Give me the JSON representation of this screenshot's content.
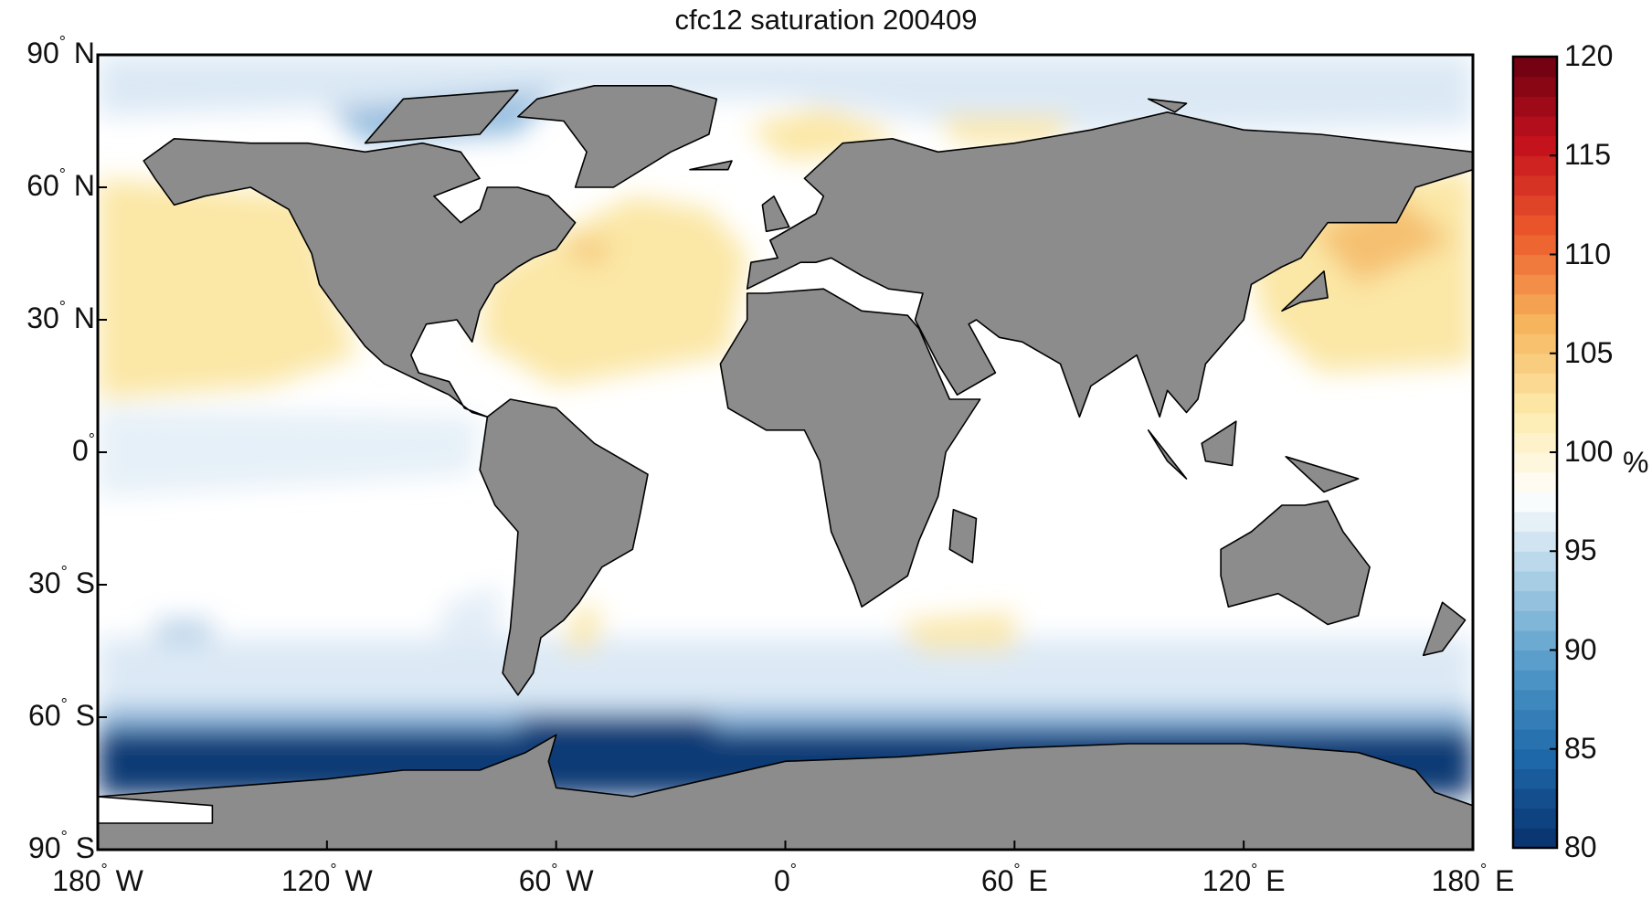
{
  "title": "cfc12 saturation 200409",
  "lat_ticks": [
    {
      "value": 90,
      "deg": "90",
      "hemi": "N"
    },
    {
      "value": 60,
      "deg": "60",
      "hemi": "N"
    },
    {
      "value": 30,
      "deg": "30",
      "hemi": "N"
    },
    {
      "value": 0,
      "deg": "0",
      "hemi": ""
    },
    {
      "value": -30,
      "deg": "30",
      "hemi": "S"
    },
    {
      "value": -60,
      "deg": "60",
      "hemi": "S"
    },
    {
      "value": -90,
      "deg": "90",
      "hemi": "S"
    }
  ],
  "lon_ticks": [
    {
      "value": -180,
      "deg": "180",
      "hemi": "W"
    },
    {
      "value": -120,
      "deg": "120",
      "hemi": "W"
    },
    {
      "value": -60,
      "deg": "60",
      "hemi": "W"
    },
    {
      "value": 0,
      "deg": "0",
      "hemi": ""
    },
    {
      "value": 60,
      "deg": "60",
      "hemi": "E"
    },
    {
      "value": 120,
      "deg": "120",
      "hemi": "E"
    },
    {
      "value": 180,
      "deg": "180",
      "hemi": "E"
    }
  ],
  "colorbar": {
    "min": 80,
    "max": 120,
    "ticks": [
      "80",
      "85",
      "90",
      "95",
      "100",
      "105",
      "110",
      "115",
      "120"
    ],
    "unit": "%",
    "colors": [
      "#08306b",
      "#1d66a8",
      "#4f97c8",
      "#a3cbe3",
      "#ffffff",
      "#fde9a8",
      "#f6b35a",
      "#ec5a2c",
      "#c5121e",
      "#6b0010"
    ]
  },
  "map_colors": {
    "land": "#8c8c8c",
    "ocean_neutral": "#ffffff",
    "ocean_light_blue": "#dce9f5",
    "ocean_blue": "#6aa3d2",
    "ocean_deep_blue": "#0c3a74",
    "ocean_yellow": "#fbe7a6",
    "ocean_orange": "#f4bb6a",
    "ocean_red": "#d73a2a"
  }
}
